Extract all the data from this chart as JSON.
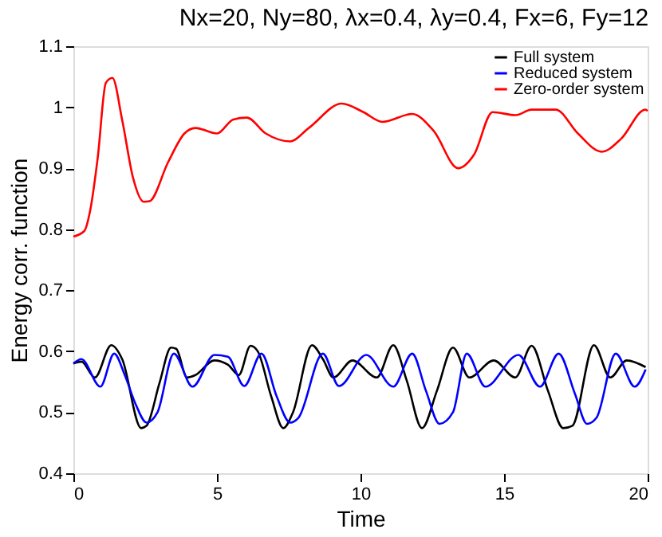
{
  "chart_data": {
    "type": "line",
    "title": "Nx=20, Ny=80, λx=0.4, λy=0.4, Fx=6, Fy=12",
    "xlabel": "Time",
    "ylabel": "Energy corr. function",
    "xlim": [
      0,
      20
    ],
    "xticks": [
      0,
      5,
      10,
      15,
      20
    ],
    "ylim": [
      0.4,
      1.1
    ],
    "yticks": [
      0.4,
      0.5,
      0.6,
      0.7,
      0.8,
      0.9,
      1,
      1.1
    ],
    "grid": false,
    "legend": "top right",
    "line_style": "solid",
    "marker": "none",
    "series": [
      {
        "name": "Full system",
        "color": "#000000",
        "x": [
          0,
          0.28,
          0.75,
          1.32,
          1.7,
          2.36,
          2.55,
          3.0,
          3.4,
          3.58,
          3.96,
          4.25,
          4.91,
          5.38,
          5.76,
          6.17,
          6.42,
          6.89,
          7.31,
          7.65,
          8.31,
          8.69,
          9.06,
          9.72,
          10.57,
          11.14,
          11.61,
          12.14,
          12.66,
          13.22,
          13.79,
          14.64,
          15.39,
          15.96,
          16.53,
          17.06,
          17.38,
          18.13,
          18.7,
          19.27,
          19.93
        ],
        "values": [
          0.58,
          0.583,
          0.557,
          0.61,
          0.587,
          0.474,
          0.478,
          0.548,
          0.606,
          0.604,
          0.557,
          0.561,
          0.585,
          0.578,
          0.561,
          0.609,
          0.6,
          0.526,
          0.474,
          0.5,
          0.61,
          0.587,
          0.557,
          0.585,
          0.557,
          0.61,
          0.552,
          0.474,
          0.535,
          0.606,
          0.557,
          0.585,
          0.557,
          0.609,
          0.535,
          0.474,
          0.478,
          0.61,
          0.557,
          0.585,
          0.574
        ]
      },
      {
        "name": "Reduced system",
        "color": "#0000ff",
        "x": [
          0,
          0.28,
          0.94,
          1.42,
          1.79,
          2.17,
          2.55,
          2.93,
          3.5,
          4.15,
          4.91,
          5.38,
          5.95,
          6.55,
          7.08,
          7.55,
          7.84,
          8.69,
          9.25,
          10.2,
          11.14,
          11.8,
          12.28,
          12.75,
          13.22,
          13.7,
          14.35,
          15.5,
          16.25,
          16.9,
          17.47,
          17.89,
          18.22,
          18.89,
          19.55,
          19.93
        ],
        "values": [
          0.58,
          0.587,
          0.542,
          0.596,
          0.561,
          0.513,
          0.483,
          0.5,
          0.596,
          0.542,
          0.594,
          0.591,
          0.543,
          0.596,
          0.526,
          0.483,
          0.491,
          0.596,
          0.543,
          0.594,
          0.542,
          0.596,
          0.535,
          0.481,
          0.5,
          0.596,
          0.542,
          0.594,
          0.542,
          0.596,
          0.53,
          0.481,
          0.491,
          0.596,
          0.542,
          0.57
        ]
      },
      {
        "name": "Zero-order system",
        "color": "#ff0000",
        "x": [
          0,
          0.38,
          0.57,
          0.85,
          1.13,
          1.36,
          1.7,
          2.08,
          2.45,
          2.65,
          3.3,
          3.87,
          4.25,
          5.0,
          5.57,
          6.04,
          6.7,
          7.55,
          8.2,
          9.35,
          10.1,
          10.76,
          11.8,
          12.55,
          13.4,
          13.95,
          14.6,
          15.4,
          15.96,
          16.8,
          17.57,
          18.4,
          19.07,
          19.92,
          20
        ],
        "values": [
          0.788,
          0.797,
          0.827,
          0.918,
          1.04,
          1.048,
          0.979,
          0.884,
          0.845,
          0.846,
          0.91,
          0.957,
          0.966,
          0.957,
          0.98,
          0.983,
          0.957,
          0.944,
          0.966,
          1.006,
          0.992,
          0.976,
          0.989,
          0.961,
          0.9,
          0.922,
          0.992,
          0.987,
          0.996,
          0.996,
          0.957,
          0.927,
          0.948,
          0.996,
          0.994
        ]
      }
    ]
  }
}
